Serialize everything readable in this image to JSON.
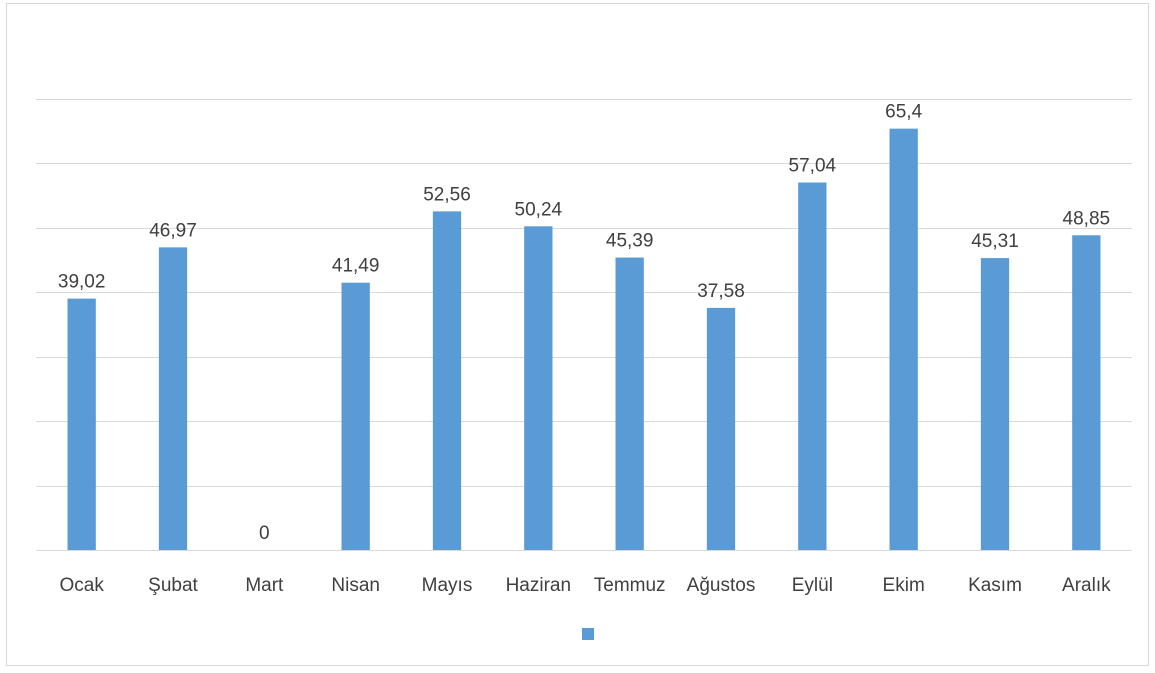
{
  "chart_data": {
    "type": "bar",
    "categories": [
      "Ocak",
      "Şubat",
      "Mart",
      "Nisan",
      "Mayıs",
      "Haziran",
      "Temmuz",
      "Ağustos",
      "Eylül",
      "Ekim",
      "Kasım",
      "Aralık"
    ],
    "values": [
      39.02,
      46.97,
      0,
      41.49,
      52.56,
      50.24,
      45.39,
      37.58,
      57.04,
      65.4,
      45.31,
      48.85
    ],
    "data_labels": [
      "39,02",
      "46,97",
      "0",
      "41,49",
      "52,56",
      "50,24",
      "45,39",
      "37,58",
      "57,04",
      "65,4",
      "45,31",
      "48,85"
    ],
    "title": "",
    "xlabel": "",
    "ylabel": "",
    "ylim": [
      0,
      70
    ],
    "y_gridline_step": 10,
    "y_tick_labels_visible": false,
    "grid": true,
    "legend": {
      "position": "bottom",
      "entries": [
        {
          "name": "",
          "color": "#5b9bd5"
        }
      ]
    },
    "colors": {
      "bar": "#5b9bd5",
      "grid": "#d9d9d9",
      "text": "#404040"
    }
  }
}
